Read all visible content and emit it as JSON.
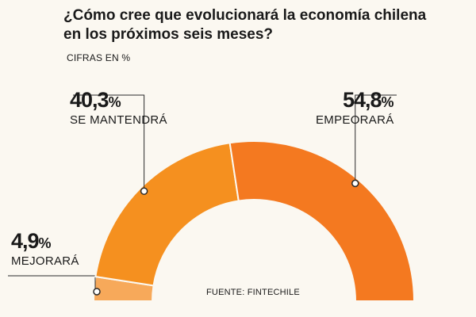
{
  "header": {
    "title_line1": "¿Cómo cree que evolucionará la economía chilena",
    "title_line2": "en los próximos seis meses?",
    "subtitle": "CIFRAS EN %"
  },
  "source": "FUENTE: FINTECHILE",
  "chart_data": {
    "type": "pie",
    "variant": "semicircle-donut",
    "title": "¿Cómo cree que evolucionará la economía chilena en los próximos seis meses?",
    "subtitle": "CIFRAS EN %",
    "unit": "%",
    "slices": [
      {
        "label": "MEJORARÁ",
        "value": 4.9,
        "value_text": "4,9",
        "color": "#f7a95a"
      },
      {
        "label": "SE MANTENDRÁ",
        "value": 40.3,
        "value_text": "40,3",
        "color": "#f5901f"
      },
      {
        "label": "EMPEORARÁ",
        "value": 54.8,
        "value_text": "54,8",
        "color": "#f47920"
      }
    ],
    "legend": "none",
    "grid": false
  }
}
